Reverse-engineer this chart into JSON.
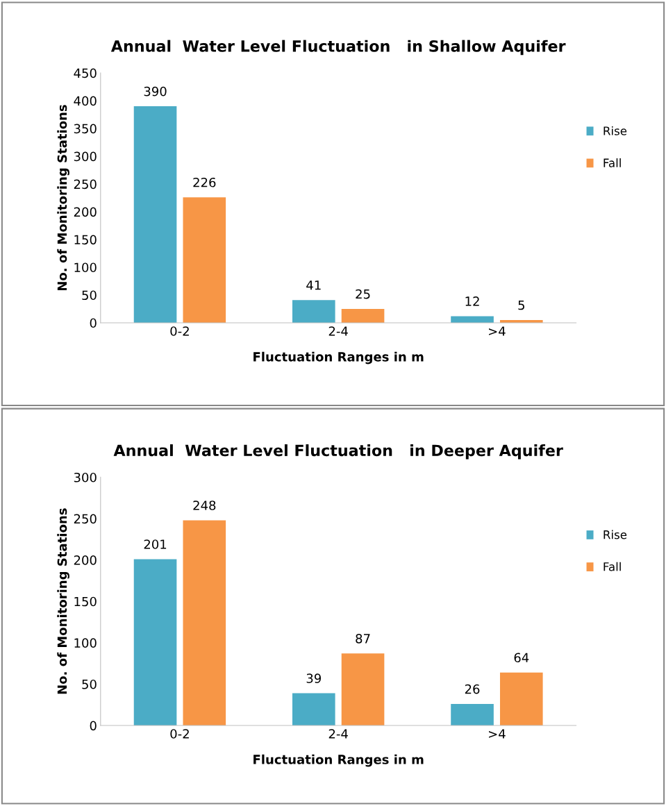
{
  "chart_data": [
    {
      "type": "bar",
      "title": "Annual  Water Level Fluctuation   in Shallow Aquifer",
      "xlabel": "Fluctuation Ranges in m",
      "ylabel": "No. of Monitoring Stations",
      "categories": [
        "0-2",
        "2-4",
        ">4"
      ],
      "series": [
        {
          "name": "Rise",
          "color": "#4bacc6",
          "values": [
            390,
            41,
            12
          ]
        },
        {
          "name": "Fall",
          "color": "#f79646",
          "values": [
            226,
            25,
            5
          ]
        }
      ],
      "ylim": [
        0,
        450
      ],
      "yticks": [
        0,
        50,
        100,
        150,
        200,
        250,
        300,
        350,
        400,
        450
      ],
      "data_labels": true,
      "legend": "right",
      "grid": false
    },
    {
      "type": "bar",
      "title": "Annual  Water Level Fluctuation   in Deeper Aquifer",
      "xlabel": "Fluctuation Ranges in m",
      "ylabel": "No. of Monitoring Stations",
      "categories": [
        "0-2",
        "2-4",
        ">4"
      ],
      "series": [
        {
          "name": "Rise",
          "color": "#4bacc6",
          "values": [
            201,
            39,
            26
          ]
        },
        {
          "name": "Fall",
          "color": "#f79646",
          "values": [
            248,
            87,
            64
          ]
        }
      ],
      "ylim": [
        0,
        300
      ],
      "yticks": [
        0,
        50,
        100,
        150,
        200,
        250,
        300
      ],
      "data_labels": true,
      "legend": "right",
      "grid": false
    }
  ]
}
